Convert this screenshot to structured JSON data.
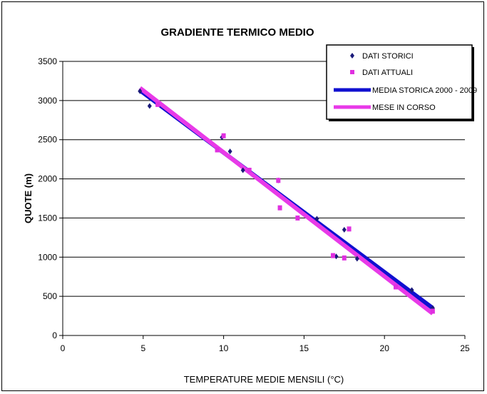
{
  "chart_data": {
    "type": "scatter",
    "title": "GRADIENTE TERMICO MEDIO",
    "xlabel": "TEMPERATURE  MEDIE MENSILI (°C)",
    "ylabel": "QUOTE  (m)",
    "xlim": [
      0,
      25
    ],
    "ylim": [
      0,
      3500
    ],
    "x_ticks": [
      0,
      5,
      10,
      15,
      20,
      25
    ],
    "y_ticks": [
      0,
      500,
      1000,
      1500,
      2000,
      2500,
      3000,
      3500
    ],
    "grid": "horizontal",
    "legend_position": "top-right",
    "series": [
      {
        "name": "DATI STORICI",
        "kind": "points",
        "marker": "diamond",
        "color": "#1a1a7a",
        "points": [
          [
            4.8,
            3120
          ],
          [
            5.4,
            2930
          ],
          [
            9.9,
            2530
          ],
          [
            10.4,
            2350
          ],
          [
            11.2,
            2110
          ],
          [
            13.4,
            1980
          ],
          [
            15.8,
            1490
          ],
          [
            17.0,
            1010
          ],
          [
            17.5,
            1350
          ],
          [
            18.3,
            980
          ],
          [
            21.7,
            580
          ],
          [
            23.0,
            350
          ]
        ]
      },
      {
        "name": "DATI ATTUALI",
        "kind": "points",
        "marker": "square",
        "color": "#e030e0",
        "points": [
          [
            5.9,
            2950
          ],
          [
            9.6,
            2370
          ],
          [
            10.0,
            2550
          ],
          [
            11.6,
            2110
          ],
          [
            13.4,
            1980
          ],
          [
            13.5,
            1630
          ],
          [
            14.6,
            1500
          ],
          [
            16.8,
            1020
          ],
          [
            17.5,
            990
          ],
          [
            17.8,
            1360
          ],
          [
            20.7,
            620
          ],
          [
            23.0,
            310
          ]
        ]
      },
      {
        "name": "MEDIA STORICA 2000 - 2009",
        "kind": "line",
        "color": "#1010d0",
        "points": [
          [
            4.8,
            3130
          ],
          [
            23.0,
            350
          ]
        ]
      },
      {
        "name": "MESE IN CORSO",
        "kind": "line",
        "color": "#e83ae8",
        "points": [
          [
            4.8,
            3160
          ],
          [
            23.0,
            280
          ]
        ]
      }
    ]
  }
}
